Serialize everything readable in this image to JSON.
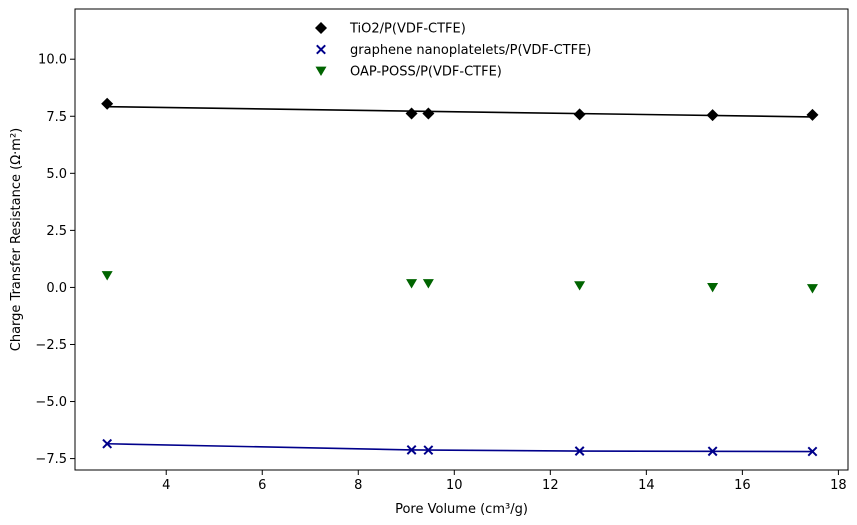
{
  "chart_data": {
    "type": "scatter",
    "title": "",
    "xlabel": "Pore Volume (cm³/g)",
    "ylabel": "Charge Transfer Resistance (Ω·m²)",
    "xlim": [
      2.1,
      18.2
    ],
    "ylim": [
      -8.0,
      12.2
    ],
    "xticks": [
      4,
      6,
      8,
      10,
      12,
      14,
      16,
      18
    ],
    "yticks": [
      -7.5,
      -5.0,
      -2.5,
      0.0,
      2.5,
      5.0,
      7.5,
      10.0
    ],
    "xtick_labels": [
      "4",
      "6",
      "8",
      "10",
      "12",
      "14",
      "16",
      "18"
    ],
    "ytick_labels": [
      "−7.5",
      "−5.0",
      "−2.5",
      "0.0",
      "2.5",
      "5.0",
      "7.5",
      "10.0"
    ],
    "grid": false,
    "legend_position": "top-center",
    "series": [
      {
        "name": "TiO2/P(VDF-CTFE)",
        "marker": "diamond",
        "color": "#000000",
        "x": [
          2.77,
          9.11,
          9.46,
          12.61,
          15.38,
          17.46
        ],
        "y": [
          8.05,
          7.62,
          7.62,
          7.58,
          7.55,
          7.56
        ],
        "fit_line": {
          "x": [
            2.77,
            17.46
          ],
          "y": [
            7.92,
            7.47
          ],
          "color": "#000000"
        }
      },
      {
        "name": "graphene nanoplatelets/P(VDF-CTFE)",
        "marker": "x",
        "color": "#00008b",
        "x": [
          2.77,
          9.11,
          9.46,
          12.61,
          15.38,
          17.46
        ],
        "y": [
          -6.85,
          -7.12,
          -7.13,
          -7.17,
          -7.18,
          -7.19
        ],
        "fit_line": {
          "x": [
            2.77,
            9.11,
            12.61,
            17.46
          ],
          "y": [
            -6.85,
            -7.12,
            -7.17,
            -7.19
          ],
          "color": "#00008b"
        }
      },
      {
        "name": "OAP-POSS/P(VDF-CTFE)",
        "marker": "triangle-down",
        "color": "#006400",
        "x": [
          2.77,
          9.11,
          9.46,
          12.61,
          15.38,
          17.46
        ],
        "y": [
          0.52,
          0.17,
          0.17,
          0.08,
          0.0,
          -0.05
        ]
      }
    ]
  }
}
